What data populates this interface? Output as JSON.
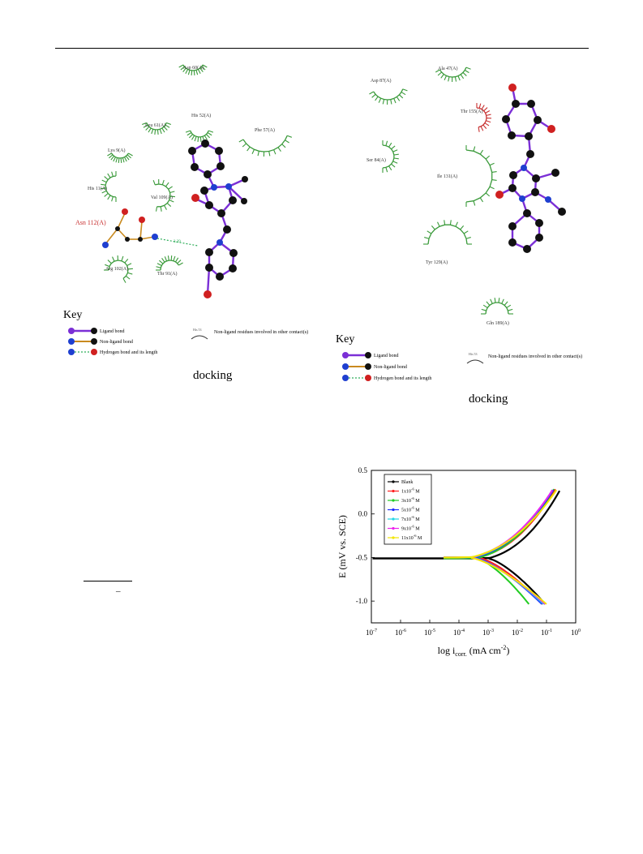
{
  "left_diagram": {
    "residues": [
      {
        "label": "Asp 60(A)",
        "color": "#3a9a3a"
      },
      {
        "label": "His 52(A)",
        "color": "#3a9a3a"
      },
      {
        "label": "Leu 61(A)",
        "color": "#3a9a3a"
      },
      {
        "label": "Phe 57(A)",
        "color": "#3a9a3a"
      },
      {
        "label": "Lys 9(A)",
        "color": "#3a9a3a"
      },
      {
        "label": "His 11(A)",
        "color": "#3a9a3a"
      },
      {
        "label": "Val 109(A)",
        "color": "#3a9a3a"
      },
      {
        "label": "Asn 112(A)",
        "color": "#c83030"
      },
      {
        "label": "Arg 102(A)",
        "color": "#3a9a3a"
      },
      {
        "label": "Thr 91(A)",
        "color": "#3a9a3a"
      }
    ],
    "hbond_length": "3.39",
    "key_title": "Key",
    "key_items": [
      "Ligand bond",
      "Non-ligand bond",
      "Hydrogen bond and its length"
    ],
    "key_residue_note": "Non-ligand residues involved in other contact(s)",
    "key_residue_symbol": "His 53",
    "caption": "docking"
  },
  "right_diagram": {
    "residues": [
      {
        "label": "Ala 47(A)",
        "color": "#3a9a3a"
      },
      {
        "label": "Asp 87(A)",
        "color": "#3a9a3a"
      },
      {
        "label": "Thr 155(A)",
        "color": "#c83030"
      },
      {
        "label": "Ser 84(A)",
        "color": "#3a9a3a"
      },
      {
        "label": "Ile 131(A)",
        "color": "#3a9a3a"
      },
      {
        "label": "Tyr 129(A)",
        "color": "#3a9a3a"
      },
      {
        "label": "Gln 189(A)",
        "color": "#3a9a3a"
      }
    ],
    "key_title": "Key",
    "key_items": [
      "Ligand bond",
      "Non-ligand bond",
      "Hydrogen bond and its length"
    ],
    "key_residue_note": "Non-ligand residues involved in other contact(s)",
    "key_residue_symbol": "His 53",
    "caption": "docking"
  },
  "colors": {
    "ligand_bond": "#7b2fd6",
    "non_ligand_bond": "#c98a1f",
    "hbond": "#2fae5a",
    "carbon": "#111111",
    "nitrogen": "#1f3fd0",
    "oxygen": "#d02020",
    "residue_green": "#3a9a3a",
    "residue_red": "#c83030"
  },
  "fraction_bar": "–",
  "chart_data": {
    "type": "line",
    "title": "",
    "xlabel": "log i",
    "xlabel_sub": "corr.",
    "xlabel_units": "(mA cm",
    "xlabel_units_sup": "-2",
    "xlabel_units_end": ")",
    "ylabel": "E  (mV vs. SCE)",
    "x_scale": "log",
    "xlim": [
      1e-07,
      1
    ],
    "ylim": [
      -1.25,
      0.5
    ],
    "x_ticks": [
      {
        "value": 1e-07,
        "base": "10",
        "exp": "-7"
      },
      {
        "value": 1e-06,
        "base": "10",
        "exp": "-6"
      },
      {
        "value": 1e-05,
        "base": "10",
        "exp": "-5"
      },
      {
        "value": 0.0001,
        "base": "10",
        "exp": "-4"
      },
      {
        "value": 0.001,
        "base": "10",
        "exp": "-3"
      },
      {
        "value": 0.01,
        "base": "10",
        "exp": "-2"
      },
      {
        "value": 0.1,
        "base": "10",
        "exp": "-1"
      },
      {
        "value": 1,
        "base": "10",
        "exp": "0"
      }
    ],
    "y_ticks": [
      {
        "value": 0.5,
        "label": "0.5"
      },
      {
        "value": 0.0,
        "label": "0.0"
      },
      {
        "value": -0.5,
        "label": "-0.5"
      },
      {
        "value": -1.0,
        "label": "-1.0"
      }
    ],
    "legend_position": "top-left",
    "series": [
      {
        "name": "Blank",
        "name_base": "Blank",
        "name_exp": "",
        "name_unit": "",
        "color": "#000000",
        "ecorr": -0.51,
        "icorr": 0.0045,
        "anodic_end": [
          0.28,
          0.26
        ],
        "cathodic_end": [
          0.09,
          -1.03
        ],
        "start_x": 1.1e-07,
        "shift_c": 1.0
      },
      {
        "name": "1x10-6 M",
        "name_base": "1x10",
        "name_exp": "-6",
        "name_unit": " M",
        "color": "#ff2020",
        "ecorr": -0.5,
        "icorr": 0.0021,
        "anodic_end": [
          0.2,
          0.28
        ],
        "cathodic_end": [
          0.075,
          -1.03
        ],
        "start_x": 3e-05,
        "shift_c": 0.8
      },
      {
        "name": "3x10-6 M",
        "name_base": "3x10",
        "name_exp": "-6",
        "name_unit": " M",
        "color": "#22cc22",
        "ecorr": -0.51,
        "icorr": 0.0018,
        "anodic_end": [
          0.18,
          0.28
        ],
        "cathodic_end": [
          0.025,
          -1.03
        ],
        "start_x": 3e-05,
        "shift_c": 0.7
      },
      {
        "name": "5x10-6 M",
        "name_base": "5x10",
        "name_exp": "-6",
        "name_unit": " M",
        "color": "#1e2bff",
        "ecorr": -0.5,
        "icorr": 0.0015,
        "anodic_end": [
          0.17,
          0.27
        ],
        "cathodic_end": [
          0.07,
          -1.03
        ],
        "start_x": 3e-05,
        "shift_c": 0.65
      },
      {
        "name": "7x10-6 M",
        "name_base": "7x10",
        "name_exp": "-6",
        "name_unit": " M",
        "color": "#22d6e6",
        "ecorr": -0.5,
        "icorr": 0.0013,
        "anodic_end": [
          0.16,
          0.27
        ],
        "cathodic_end": [
          0.08,
          -1.03
        ],
        "start_x": 3e-05,
        "shift_c": 0.6
      },
      {
        "name": "9x10-6 M",
        "name_base": "9x10",
        "name_exp": "-6",
        "name_unit": " M",
        "color": "#ee22ee",
        "ecorr": -0.5,
        "icorr": 0.0012,
        "anodic_end": [
          0.16,
          0.27
        ],
        "cathodic_end": [
          0.09,
          -1.03
        ],
        "start_x": 3e-05,
        "shift_c": 0.55
      },
      {
        "name": "11x10-6 M",
        "name_base": "11x10",
        "name_exp": "-6",
        "name_unit": " M",
        "color": "#f2e600",
        "ecorr": -0.5,
        "icorr": 0.0011,
        "anodic_end": [
          0.22,
          0.27
        ],
        "cathodic_end": [
          0.1,
          -1.03
        ],
        "start_x": 3e-05,
        "shift_c": 0.5
      }
    ]
  }
}
